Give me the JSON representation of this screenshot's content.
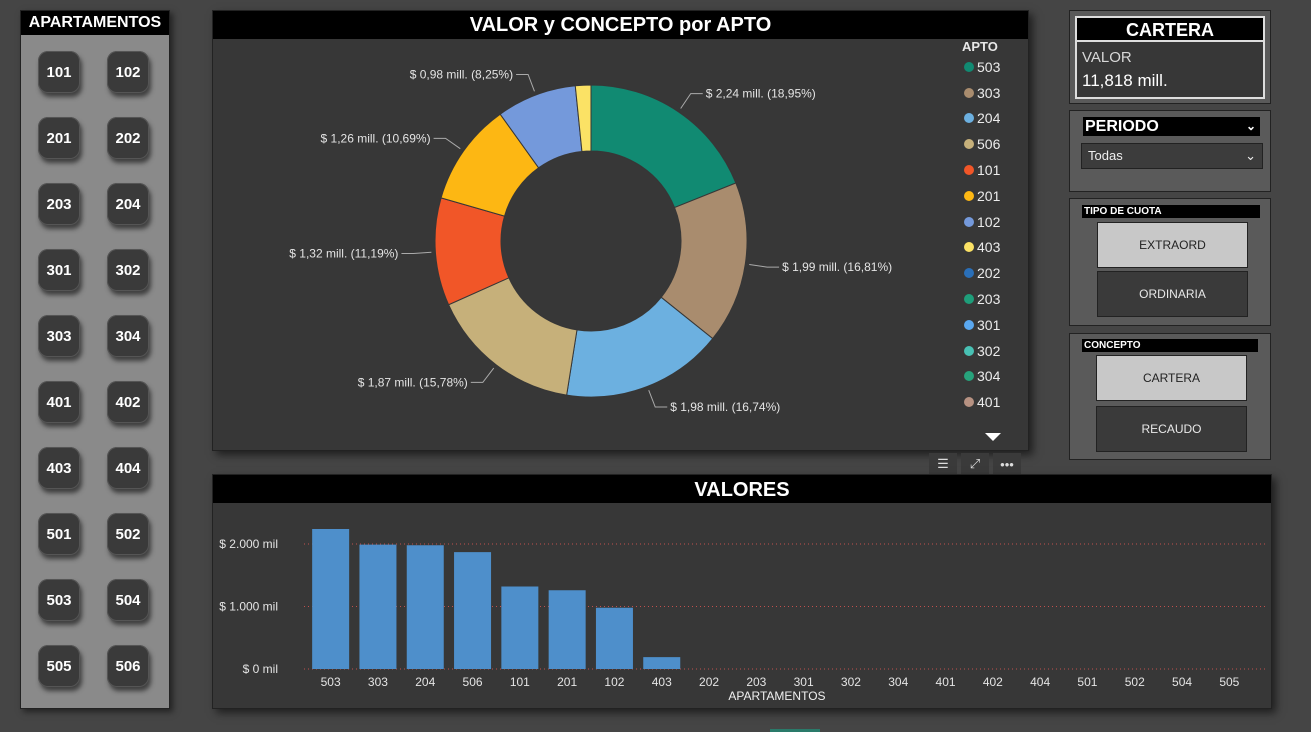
{
  "apartments": {
    "title": "APARTAMENTOS",
    "items": [
      "101",
      "102",
      "201",
      "202",
      "203",
      "204",
      "301",
      "302",
      "303",
      "304",
      "401",
      "402",
      "403",
      "404",
      "501",
      "502",
      "503",
      "504",
      "505",
      "506"
    ]
  },
  "donut": {
    "title": "VALOR y CONCEPTO por APTO",
    "legend_title": "APTO",
    "legend": [
      {
        "label": "503",
        "color": "#118A72"
      },
      {
        "label": "303",
        "color": "#A98C6E"
      },
      {
        "label": "204",
        "color": "#6CB0E0"
      },
      {
        "label": "506",
        "color": "#C6B07A"
      },
      {
        "label": "101",
        "color": "#F15628"
      },
      {
        "label": "201",
        "color": "#FDB713"
      },
      {
        "label": "102",
        "color": "#7499DB"
      },
      {
        "label": "403",
        "color": "#FBE265"
      },
      {
        "label": "202",
        "color": "#2A6FB8"
      },
      {
        "label": "203",
        "color": "#1E9E7A"
      },
      {
        "label": "301",
        "color": "#5AA8F0"
      },
      {
        "label": "302",
        "color": "#48C1B4"
      },
      {
        "label": "304",
        "color": "#27A37C"
      },
      {
        "label": "401",
        "color": "#B79282"
      }
    ]
  },
  "toolbar": {
    "filter_icon": "filter-icon",
    "focus_icon": "focus-mode-icon",
    "more_icon": "more-options-icon"
  },
  "cartera": {
    "title": "CARTERA",
    "label": "VALOR",
    "value": "11,818 mill."
  },
  "periodo": {
    "title": "PERIODO",
    "selected": "Todas"
  },
  "tipo_cuota": {
    "title": "TIPO DE CUOTA",
    "options": [
      "EXTRAORD",
      "ORDINARIA"
    ]
  },
  "concepto": {
    "title": "CONCEPTO",
    "options": [
      "CARTERA",
      "RECAUDO"
    ]
  },
  "chart_data": [
    {
      "type": "pie",
      "title": "VALOR y CONCEPTO por APTO",
      "legend_title": "APTO",
      "slices": [
        {
          "label": "503",
          "value": 2.24,
          "percent": 18.95,
          "text": "$ 2,24 mill. (18,95%)",
          "color": "#118A72"
        },
        {
          "label": "303",
          "value": 1.99,
          "percent": 16.81,
          "text": "$ 1,99 mill. (16,81%)",
          "color": "#A98C6E"
        },
        {
          "label": "204",
          "value": 1.98,
          "percent": 16.74,
          "text": "$ 1,98 mill. (16,74%)",
          "color": "#6CB0E0"
        },
        {
          "label": "506",
          "value": 1.87,
          "percent": 15.78,
          "text": "$ 1,87 mill. (15,78%)",
          "color": "#C6B07A"
        },
        {
          "label": "101",
          "value": 1.32,
          "percent": 11.19,
          "text": "$ 1,32 mill. (11,19%)",
          "color": "#F15628"
        },
        {
          "label": "201",
          "value": 1.26,
          "percent": 10.69,
          "text": "$ 1,26 mill. (10,69%)",
          "color": "#FDB713"
        },
        {
          "label": "102",
          "value": 0.98,
          "percent": 8.25,
          "text": "$ 0,98 mill. (8,25%)",
          "color": "#7499DB"
        },
        {
          "label": "403",
          "value": 0.19,
          "percent": 1.59,
          "text": "",
          "color": "#FBE265"
        }
      ]
    },
    {
      "type": "bar",
      "title": "VALORES",
      "xlabel": "APARTAMENTOS",
      "ylabel": "",
      "categories": [
        "503",
        "303",
        "204",
        "506",
        "101",
        "201",
        "102",
        "403",
        "202",
        "203",
        "301",
        "302",
        "304",
        "401",
        "402",
        "404",
        "501",
        "502",
        "504",
        "505"
      ],
      "values": [
        2240,
        1990,
        1980,
        1870,
        1320,
        1260,
        980,
        190,
        0,
        0,
        0,
        0,
        0,
        0,
        0,
        0,
        0,
        0,
        0,
        0
      ],
      "yticks": [
        {
          "value": 0,
          "label": "$ 0 mil"
        },
        {
          "value": 1000,
          "label": "$ 1.000 mil"
        },
        {
          "value": 2000,
          "label": "$ 2.000 mil"
        }
      ],
      "ylim": [
        0,
        2000
      ],
      "bar_color": "#4E8FCB",
      "gridline_color": "#C0504D"
    }
  ]
}
